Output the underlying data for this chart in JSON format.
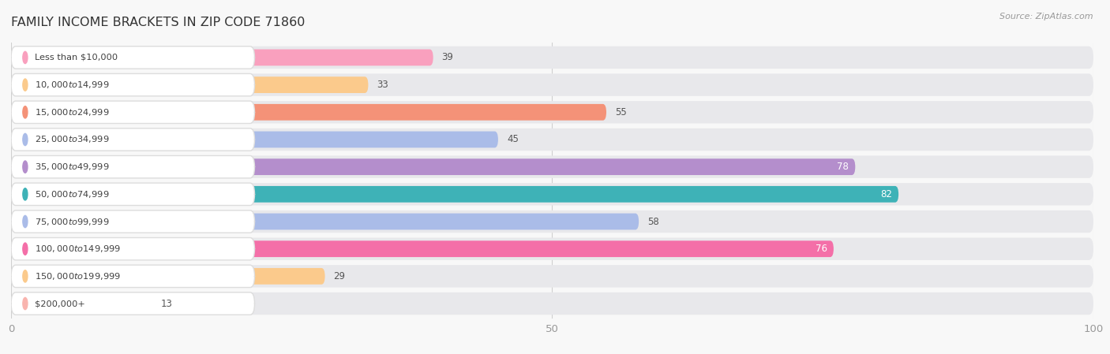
{
  "title": "FAMILY INCOME BRACKETS IN ZIP CODE 71860",
  "source": "Source: ZipAtlas.com",
  "categories": [
    "Less than $10,000",
    "$10,000 to $14,999",
    "$15,000 to $24,999",
    "$25,000 to $34,999",
    "$35,000 to $49,999",
    "$50,000 to $74,999",
    "$75,000 to $99,999",
    "$100,000 to $149,999",
    "$150,000 to $199,999",
    "$200,000+"
  ],
  "values": [
    39,
    33,
    55,
    45,
    78,
    82,
    58,
    76,
    29,
    13
  ],
  "bar_colors": [
    "#F9A0BE",
    "#FBCA8C",
    "#F49278",
    "#AABCE8",
    "#B48ECC",
    "#3EB2B7",
    "#AABCE8",
    "#F46FA8",
    "#FBCA8C",
    "#F9B4AE"
  ],
  "label_colors": [
    "dark",
    "dark",
    "dark",
    "dark",
    "white",
    "white",
    "dark",
    "white",
    "dark",
    "dark"
  ],
  "xlim": [
    0,
    100
  ],
  "xticks": [
    0,
    50,
    100
  ],
  "background_color": "#f8f8f8",
  "bar_bg_color": "#e8e8eb",
  "title_fontsize": 11.5,
  "source_fontsize": 8
}
